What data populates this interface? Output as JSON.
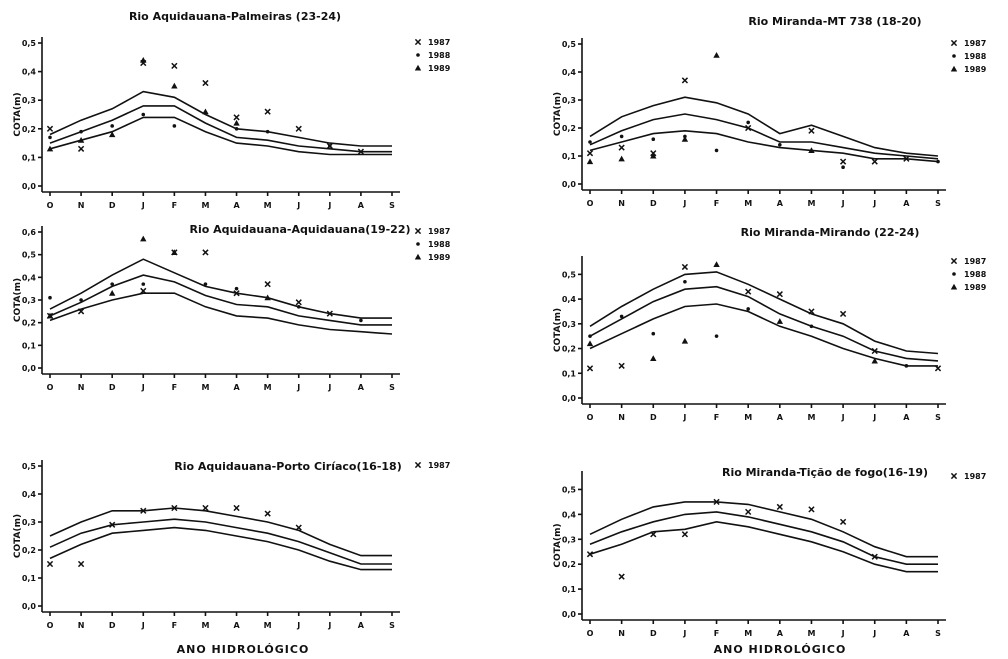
{
  "xlabel": "ANO HIDROLÓGICO",
  "chart_data": [
    {
      "type": "line",
      "title": "Rio Aquidauana-Palmeiras (23-24)",
      "ylabel": "COTA(m)",
      "categories": [
        "O",
        "N",
        "D",
        "J",
        "F",
        "M",
        "A",
        "M",
        "J",
        "J",
        "A",
        "S"
      ],
      "yticks": [
        "0,0",
        "0,1",
        "0,2",
        "0,3",
        "0,4",
        "0,5"
      ],
      "ylim": [
        0,
        0.5
      ],
      "series": [
        {
          "values": [
            0.18,
            0.23,
            0.27,
            0.33,
            0.31,
            0.25,
            0.2,
            0.19,
            0.17,
            0.15,
            0.14,
            0.14
          ]
        },
        {
          "values": [
            0.15,
            0.19,
            0.23,
            0.28,
            0.28,
            0.22,
            0.17,
            0.16,
            0.14,
            0.13,
            0.12,
            0.12
          ]
        },
        {
          "values": [
            0.13,
            0.16,
            0.19,
            0.24,
            0.24,
            0.19,
            0.15,
            0.14,
            0.12,
            0.11,
            0.11,
            0.11
          ]
        }
      ],
      "legend": [
        {
          "marker": "x",
          "label": "1987"
        },
        {
          "marker": "dot",
          "label": "1988"
        },
        {
          "marker": "tri",
          "label": "1989"
        }
      ],
      "points": [
        {
          "m": "x",
          "x": 0,
          "y": 0.2
        },
        {
          "m": "x",
          "x": 1,
          "y": 0.13
        },
        {
          "m": "x",
          "x": 3,
          "y": 0.43
        },
        {
          "m": "x",
          "x": 4,
          "y": 0.42
        },
        {
          "m": "x",
          "x": 5,
          "y": 0.36
        },
        {
          "m": "x",
          "x": 6,
          "y": 0.24
        },
        {
          "m": "x",
          "x": 7,
          "y": 0.26
        },
        {
          "m": "x",
          "x": 8,
          "y": 0.2
        },
        {
          "m": "x",
          "x": 9,
          "y": 0.14
        },
        {
          "m": "x",
          "x": 10,
          "y": 0.12
        },
        {
          "m": "dot",
          "x": 0,
          "y": 0.17
        },
        {
          "m": "dot",
          "x": 1,
          "y": 0.19
        },
        {
          "m": "dot",
          "x": 2,
          "y": 0.21
        },
        {
          "m": "dot",
          "x": 3,
          "y": 0.25
        },
        {
          "m": "dot",
          "x": 4,
          "y": 0.21
        },
        {
          "m": "dot",
          "x": 6,
          "y": 0.2
        },
        {
          "m": "dot",
          "x": 7,
          "y": 0.19
        },
        {
          "m": "dot",
          "x": 9,
          "y": 0.14
        },
        {
          "m": "tri",
          "x": 0,
          "y": 0.13
        },
        {
          "m": "tri",
          "x": 1,
          "y": 0.16
        },
        {
          "m": "tri",
          "x": 2,
          "y": 0.18
        },
        {
          "m": "tri",
          "x": 3,
          "y": 0.44
        },
        {
          "m": "tri",
          "x": 4,
          "y": 0.35
        },
        {
          "m": "tri",
          "x": 5,
          "y": 0.26
        },
        {
          "m": "tri",
          "x": 6,
          "y": 0.22
        }
      ]
    },
    {
      "type": "line",
      "title": "Rio Miranda-MT 738 (18-20)",
      "ylabel": "COTA(m)",
      "categories": [
        "O",
        "N",
        "D",
        "J",
        "F",
        "M",
        "A",
        "M",
        "J",
        "J",
        "A",
        "S"
      ],
      "yticks": [
        "0,0",
        "0,1",
        "0,2",
        "0,3",
        "0,4",
        "0,5"
      ],
      "ylim": [
        0,
        0.5
      ],
      "series": [
        {
          "values": [
            0.17,
            0.24,
            0.28,
            0.31,
            0.29,
            0.25,
            0.18,
            0.21,
            0.17,
            0.13,
            0.11,
            0.1
          ]
        },
        {
          "values": [
            0.14,
            0.19,
            0.23,
            0.25,
            0.23,
            0.2,
            0.15,
            0.15,
            0.13,
            0.11,
            0.1,
            0.09
          ]
        },
        {
          "values": [
            0.12,
            0.15,
            0.18,
            0.19,
            0.18,
            0.15,
            0.13,
            0.12,
            0.11,
            0.09,
            0.09,
            0.08
          ]
        }
      ],
      "legend": [
        {
          "marker": "x",
          "label": "1987"
        },
        {
          "marker": "dot",
          "label": "1988"
        },
        {
          "marker": "tri",
          "label": "1989"
        }
      ],
      "points": [
        {
          "m": "x",
          "x": 0,
          "y": 0.11
        },
        {
          "m": "x",
          "x": 1,
          "y": 0.13
        },
        {
          "m": "x",
          "x": 2,
          "y": 0.11
        },
        {
          "m": "x",
          "x": 3,
          "y": 0.37
        },
        {
          "m": "x",
          "x": 5,
          "y": 0.2
        },
        {
          "m": "x",
          "x": 7,
          "y": 0.19
        },
        {
          "m": "x",
          "x": 8,
          "y": 0.08
        },
        {
          "m": "x",
          "x": 9,
          "y": 0.08
        },
        {
          "m": "x",
          "x": 10,
          "y": 0.09
        },
        {
          "m": "dot",
          "x": 0,
          "y": 0.15
        },
        {
          "m": "dot",
          "x": 1,
          "y": 0.17
        },
        {
          "m": "dot",
          "x": 2,
          "y": 0.16
        },
        {
          "m": "dot",
          "x": 3,
          "y": 0.17
        },
        {
          "m": "dot",
          "x": 4,
          "y": 0.12
        },
        {
          "m": "dot",
          "x": 5,
          "y": 0.22
        },
        {
          "m": "dot",
          "x": 6,
          "y": 0.14
        },
        {
          "m": "dot",
          "x": 8,
          "y": 0.06
        },
        {
          "m": "dot",
          "x": 11,
          "y": 0.08
        },
        {
          "m": "tri",
          "x": 0,
          "y": 0.08
        },
        {
          "m": "tri",
          "x": 1,
          "y": 0.09
        },
        {
          "m": "tri",
          "x": 2,
          "y": 0.1
        },
        {
          "m": "tri",
          "x": 3,
          "y": 0.16
        },
        {
          "m": "tri",
          "x": 4,
          "y": 0.46
        },
        {
          "m": "tri",
          "x": 7,
          "y": 0.12
        }
      ]
    },
    {
      "type": "line",
      "title": "Rio Aquidauana-Aquidauana(19-22)",
      "ylabel": "COTA(m)",
      "categories": [
        "O",
        "N",
        "D",
        "J",
        "F",
        "M",
        "A",
        "M",
        "J",
        "J",
        "A",
        "S"
      ],
      "yticks": [
        "0,0",
        "0,1",
        "0,2",
        "0,3",
        "0,4",
        "0,5",
        "0,6"
      ],
      "ylim": [
        0,
        0.6
      ],
      "series": [
        {
          "values": [
            0.26,
            0.33,
            0.41,
            0.48,
            0.42,
            0.36,
            0.33,
            0.31,
            0.27,
            0.24,
            0.22,
            0.22
          ]
        },
        {
          "values": [
            0.23,
            0.29,
            0.36,
            0.41,
            0.38,
            0.32,
            0.28,
            0.27,
            0.23,
            0.21,
            0.19,
            0.19
          ]
        },
        {
          "values": [
            0.21,
            0.26,
            0.3,
            0.33,
            0.33,
            0.27,
            0.23,
            0.22,
            0.19,
            0.17,
            0.16,
            0.15
          ]
        }
      ],
      "legend": [
        {
          "marker": "x",
          "label": "1987"
        },
        {
          "marker": "dot",
          "label": "1988"
        },
        {
          "marker": "tri",
          "label": "1989"
        }
      ],
      "points": [
        {
          "m": "x",
          "x": 0,
          "y": 0.23
        },
        {
          "m": "x",
          "x": 1,
          "y": 0.25
        },
        {
          "m": "x",
          "x": 3,
          "y": 0.34
        },
        {
          "m": "x",
          "x": 4,
          "y": 0.51
        },
        {
          "m": "x",
          "x": 5,
          "y": 0.51
        },
        {
          "m": "x",
          "x": 6,
          "y": 0.33
        },
        {
          "m": "x",
          "x": 7,
          "y": 0.37
        },
        {
          "m": "x",
          "x": 8,
          "y": 0.29
        },
        {
          "m": "x",
          "x": 9,
          "y": 0.24
        },
        {
          "m": "dot",
          "x": 0,
          "y": 0.31
        },
        {
          "m": "dot",
          "x": 1,
          "y": 0.3
        },
        {
          "m": "dot",
          "x": 2,
          "y": 0.37
        },
        {
          "m": "dot",
          "x": 3,
          "y": 0.37
        },
        {
          "m": "dot",
          "x": 5,
          "y": 0.37
        },
        {
          "m": "dot",
          "x": 6,
          "y": 0.35
        },
        {
          "m": "dot",
          "x": 8,
          "y": 0.27
        },
        {
          "m": "dot",
          "x": 10,
          "y": 0.21
        },
        {
          "m": "tri",
          "x": 0,
          "y": 0.23
        },
        {
          "m": "tri",
          "x": 2,
          "y": 0.33
        },
        {
          "m": "tri",
          "x": 3,
          "y": 0.57
        },
        {
          "m": "tri",
          "x": 4,
          "y": 0.51
        },
        {
          "m": "tri",
          "x": 7,
          "y": 0.31
        }
      ]
    },
    {
      "type": "line",
      "title": "Rio Miranda-Mirando (22-24)",
      "ylabel": "COTA(m)",
      "categories": [
        "O",
        "N",
        "D",
        "J",
        "F",
        "M",
        "A",
        "M",
        "J",
        "J",
        "A",
        "S"
      ],
      "yticks": [
        "0,0",
        "0,1",
        "0,2",
        "0,3",
        "0,4",
        "0,5"
      ],
      "ylim": [
        0,
        0.55
      ],
      "series": [
        {
          "values": [
            0.29,
            0.37,
            0.44,
            0.5,
            0.51,
            0.46,
            0.4,
            0.34,
            0.3,
            0.23,
            0.19,
            0.18
          ]
        },
        {
          "values": [
            0.25,
            0.32,
            0.39,
            0.44,
            0.45,
            0.41,
            0.34,
            0.29,
            0.25,
            0.19,
            0.16,
            0.15
          ]
        },
        {
          "values": [
            0.2,
            0.26,
            0.32,
            0.37,
            0.38,
            0.35,
            0.29,
            0.25,
            0.2,
            0.16,
            0.13,
            0.13
          ]
        }
      ],
      "legend": [
        {
          "marker": "x",
          "label": "1987"
        },
        {
          "marker": "dot",
          "label": "1988"
        },
        {
          "marker": "tri",
          "label": "1989"
        }
      ],
      "points": [
        {
          "m": "x",
          "x": 0,
          "y": 0.12
        },
        {
          "m": "x",
          "x": 1,
          "y": 0.13
        },
        {
          "m": "x",
          "x": 3,
          "y": 0.53
        },
        {
          "m": "x",
          "x": 5,
          "y": 0.43
        },
        {
          "m": "x",
          "x": 6,
          "y": 0.42
        },
        {
          "m": "x",
          "x": 7,
          "y": 0.35
        },
        {
          "m": "x",
          "x": 8,
          "y": 0.34
        },
        {
          "m": "x",
          "x": 9,
          "y": 0.19
        },
        {
          "m": "x",
          "x": 11,
          "y": 0.12
        },
        {
          "m": "dot",
          "x": 0,
          "y": 0.25
        },
        {
          "m": "dot",
          "x": 1,
          "y": 0.33
        },
        {
          "m": "dot",
          "x": 2,
          "y": 0.26
        },
        {
          "m": "dot",
          "x": 3,
          "y": 0.47
        },
        {
          "m": "dot",
          "x": 4,
          "y": 0.25
        },
        {
          "m": "dot",
          "x": 5,
          "y": 0.36
        },
        {
          "m": "dot",
          "x": 7,
          "y": 0.29
        },
        {
          "m": "dot",
          "x": 10,
          "y": 0.13
        },
        {
          "m": "tri",
          "x": 0,
          "y": 0.22
        },
        {
          "m": "tri",
          "x": 2,
          "y": 0.16
        },
        {
          "m": "tri",
          "x": 3,
          "y": 0.23
        },
        {
          "m": "tri",
          "x": 4,
          "y": 0.54
        },
        {
          "m": "tri",
          "x": 6,
          "y": 0.31
        },
        {
          "m": "tri",
          "x": 9,
          "y": 0.15
        }
      ]
    },
    {
      "type": "line",
      "title": "Rio Aquidauana-Porto Ciríaco(16-18)",
      "ylabel": "COTA(m)",
      "categories": [
        "O",
        "N",
        "D",
        "J",
        "F",
        "M",
        "A",
        "M",
        "J",
        "J",
        "A",
        "S"
      ],
      "yticks": [
        "0,0",
        "0,1",
        "0,2",
        "0,3",
        "0,4",
        "0,5"
      ],
      "ylim": [
        0,
        0.5
      ],
      "series": [
        {
          "values": [
            0.25,
            0.3,
            0.34,
            0.34,
            0.35,
            0.34,
            0.32,
            0.3,
            0.27,
            0.22,
            0.18,
            0.18
          ]
        },
        {
          "values": [
            0.21,
            0.26,
            0.29,
            0.3,
            0.31,
            0.3,
            0.28,
            0.26,
            0.23,
            0.19,
            0.15,
            0.15
          ]
        },
        {
          "values": [
            0.17,
            0.22,
            0.26,
            0.27,
            0.28,
            0.27,
            0.25,
            0.23,
            0.2,
            0.16,
            0.13,
            0.13
          ]
        }
      ],
      "legend": [
        {
          "marker": "x",
          "label": "1987"
        }
      ],
      "points": [
        {
          "m": "x",
          "x": 0,
          "y": 0.15
        },
        {
          "m": "x",
          "x": 1,
          "y": 0.15
        },
        {
          "m": "x",
          "x": 2,
          "y": 0.29
        },
        {
          "m": "x",
          "x": 3,
          "y": 0.34
        },
        {
          "m": "x",
          "x": 4,
          "y": 0.35
        },
        {
          "m": "x",
          "x": 5,
          "y": 0.35
        },
        {
          "m": "x",
          "x": 6,
          "y": 0.35
        },
        {
          "m": "x",
          "x": 7,
          "y": 0.33
        },
        {
          "m": "x",
          "x": 8,
          "y": 0.28
        }
      ]
    },
    {
      "type": "line",
      "title": "Rio Miranda-Tição de fogo(16-19)",
      "ylabel": "COTA(m)",
      "categories": [
        "O",
        "N",
        "D",
        "J",
        "F",
        "M",
        "A",
        "M",
        "J",
        "J",
        "A",
        "S"
      ],
      "yticks": [
        "0,0",
        "0,1",
        "0,2",
        "0,3",
        "0,4",
        "0,5"
      ],
      "ylim": [
        0,
        0.55
      ],
      "series": [
        {
          "values": [
            0.32,
            0.38,
            0.43,
            0.45,
            0.45,
            0.44,
            0.41,
            0.38,
            0.33,
            0.27,
            0.23,
            0.23
          ]
        },
        {
          "values": [
            0.28,
            0.33,
            0.37,
            0.4,
            0.41,
            0.39,
            0.36,
            0.33,
            0.29,
            0.23,
            0.2,
            0.2
          ]
        },
        {
          "values": [
            0.24,
            0.28,
            0.33,
            0.34,
            0.37,
            0.35,
            0.32,
            0.29,
            0.25,
            0.2,
            0.17,
            0.17
          ]
        }
      ],
      "legend": [
        {
          "marker": "x",
          "label": "1987"
        }
      ],
      "points": [
        {
          "m": "x",
          "x": 0,
          "y": 0.24
        },
        {
          "m": "x",
          "x": 1,
          "y": 0.15
        },
        {
          "m": "x",
          "x": 2,
          "y": 0.32
        },
        {
          "m": "x",
          "x": 3,
          "y": 0.32
        },
        {
          "m": "x",
          "x": 4,
          "y": 0.45
        },
        {
          "m": "x",
          "x": 5,
          "y": 0.41
        },
        {
          "m": "x",
          "x": 6,
          "y": 0.43
        },
        {
          "m": "x",
          "x": 7,
          "y": 0.42
        },
        {
          "m": "x",
          "x": 8,
          "y": 0.37
        },
        {
          "m": "x",
          "x": 9,
          "y": 0.23
        }
      ]
    }
  ]
}
